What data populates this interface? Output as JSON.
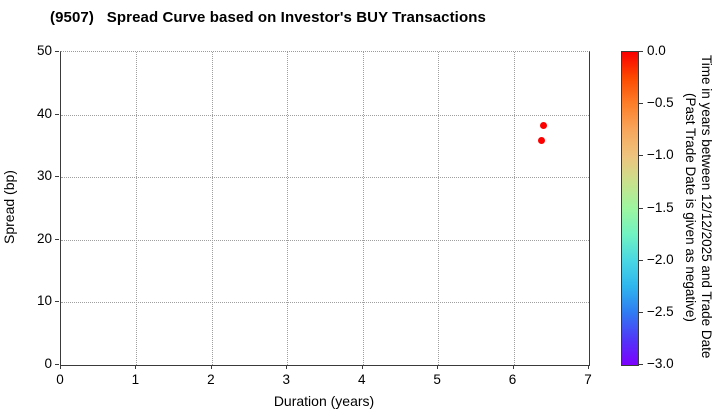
{
  "chart_data": {
    "type": "scatter",
    "title": "(9507)   Spread Curve based on Investor's BUY Transactions",
    "xlabel": "Duration (years)",
    "ylabel": "Spread (bp)",
    "xlim": [
      0,
      7
    ],
    "ylim": [
      0,
      50
    ],
    "xticks": [
      0,
      1,
      2,
      3,
      4,
      5,
      6,
      7
    ],
    "xtick_labels": [
      "0",
      "1",
      "2",
      "3",
      "4",
      "5",
      "6",
      "7"
    ],
    "yticks": [
      0,
      10,
      20,
      30,
      40,
      50
    ],
    "ytick_labels": [
      "0",
      "10",
      "20",
      "30",
      "40",
      "50"
    ],
    "grid": true,
    "grid_style": "dotted",
    "points": [
      {
        "x": 6.4,
        "y": 38.3,
        "time_years": 0.0,
        "color": "#ff0000"
      },
      {
        "x": 6.37,
        "y": 35.9,
        "time_years": 0.0,
        "color": "#ff0000"
      }
    ],
    "colorbar": {
      "label_line1": "Time in years between 12/12/2025 and Trade Date",
      "label_line2": "(Past Trade Date is given as negative)",
      "vmax": 0.0,
      "vmin": -3.0,
      "tick_values": [
        0.0,
        -0.5,
        -1.0,
        -1.5,
        -2.0,
        -2.5,
        -3.0
      ],
      "tick_labels": [
        "0.0",
        "−0.5",
        "−1.0",
        "−1.5",
        "−2.0",
        "−2.5",
        "−3.0"
      ],
      "colormap": "rainbow",
      "gradient_stops_top_to_bottom": [
        "#fa0000",
        "#fc4a00",
        "#fd7f2a",
        "#f7a65c",
        "#eec47e",
        "#c9e18c",
        "#9df6a0",
        "#71f2c2",
        "#49d7e3",
        "#2fb5ee",
        "#2f7bf2",
        "#5038f8",
        "#7c00fe"
      ]
    }
  }
}
